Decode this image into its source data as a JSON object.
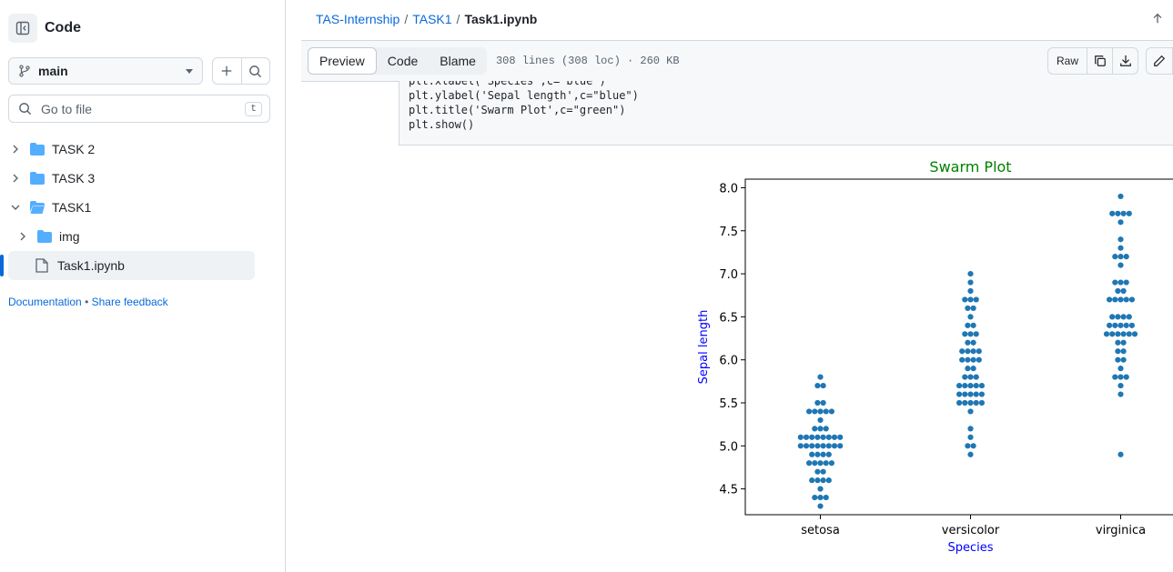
{
  "sidebar": {
    "title": "Code",
    "branch": "main",
    "search_placeholder": "Go to file",
    "search_shortcut": "t",
    "tree": [
      {
        "label": "TASK 2",
        "type": "folder",
        "expanded": false,
        "depth": 0
      },
      {
        "label": "TASK 3",
        "type": "folder",
        "expanded": false,
        "depth": 0
      },
      {
        "label": "TASK1",
        "type": "folder",
        "expanded": true,
        "depth": 0
      },
      {
        "label": "img",
        "type": "folder",
        "expanded": false,
        "depth": 1
      },
      {
        "label": "Task1.ipynb",
        "type": "file",
        "selected": true,
        "depth": 1
      }
    ],
    "links": {
      "documentation": "Documentation",
      "separator": "•",
      "feedback": "Share feedback"
    }
  },
  "breadcrumb": {
    "repo": "TAS-Internship",
    "folder": "TASK1",
    "file": "Task1.ipynb",
    "sep": "/"
  },
  "toolbar": {
    "tabs": [
      "Preview",
      "Code",
      "Blame"
    ],
    "selected_tab": "Preview",
    "file_meta": "308 lines (308 loc) · 260 KB",
    "raw_label": "Raw"
  },
  "code": {
    "lines": [
      "plt.xlabel('Species',c=\"blue\")",
      "plt.ylabel('Sepal length',c=\"blue\")",
      "plt.title('Swarm Plot',c=\"green\")",
      "plt.show()"
    ]
  },
  "chart_data": {
    "type": "scatter",
    "subtype": "swarm",
    "title": "Swarm Plot",
    "title_color": "#008000",
    "xlabel": "Species",
    "ylabel": "Sepal length",
    "label_color": "#0000ff",
    "point_color": "#1f77b4",
    "categories": [
      "setosa",
      "versicolor",
      "virginica"
    ],
    "ylim": [
      4.2,
      8.1
    ],
    "yticks": [
      "4.5",
      "5.0",
      "5.5",
      "6.0",
      "6.5",
      "7.0",
      "7.5",
      "8.0"
    ],
    "grid": false,
    "series": [
      {
        "name": "setosa",
        "values": [
          4.3,
          4.4,
          4.4,
          4.4,
          4.5,
          4.6,
          4.6,
          4.6,
          4.6,
          4.7,
          4.7,
          4.8,
          4.8,
          4.8,
          4.8,
          4.8,
          4.9,
          4.9,
          4.9,
          4.9,
          5.0,
          5.0,
          5.0,
          5.0,
          5.0,
          5.0,
          5.0,
          5.0,
          5.1,
          5.1,
          5.1,
          5.1,
          5.1,
          5.1,
          5.1,
          5.1,
          5.2,
          5.2,
          5.2,
          5.3,
          5.4,
          5.4,
          5.4,
          5.4,
          5.4,
          5.5,
          5.5,
          5.7,
          5.7,
          5.8
        ]
      },
      {
        "name": "versicolor",
        "values": [
          4.9,
          5.0,
          5.0,
          5.1,
          5.2,
          5.4,
          5.5,
          5.5,
          5.5,
          5.5,
          5.5,
          5.6,
          5.6,
          5.6,
          5.6,
          5.6,
          5.7,
          5.7,
          5.7,
          5.7,
          5.7,
          5.8,
          5.8,
          5.8,
          5.9,
          5.9,
          6.0,
          6.0,
          6.0,
          6.0,
          6.1,
          6.1,
          6.1,
          6.1,
          6.2,
          6.2,
          6.3,
          6.3,
          6.3,
          6.4,
          6.4,
          6.5,
          6.6,
          6.6,
          6.7,
          6.7,
          6.7,
          6.8,
          6.9,
          7.0
        ]
      },
      {
        "name": "virginica",
        "values": [
          4.9,
          5.6,
          5.7,
          5.8,
          5.8,
          5.8,
          5.9,
          6.0,
          6.0,
          6.1,
          6.1,
          6.2,
          6.2,
          6.3,
          6.3,
          6.3,
          6.3,
          6.3,
          6.3,
          6.4,
          6.4,
          6.4,
          6.4,
          6.4,
          6.5,
          6.5,
          6.5,
          6.5,
          6.7,
          6.7,
          6.7,
          6.7,
          6.7,
          6.8,
          6.8,
          6.9,
          6.9,
          6.9,
          7.1,
          7.2,
          7.2,
          7.2,
          7.3,
          7.4,
          7.6,
          7.7,
          7.7,
          7.7,
          7.7,
          7.9
        ]
      }
    ]
  }
}
